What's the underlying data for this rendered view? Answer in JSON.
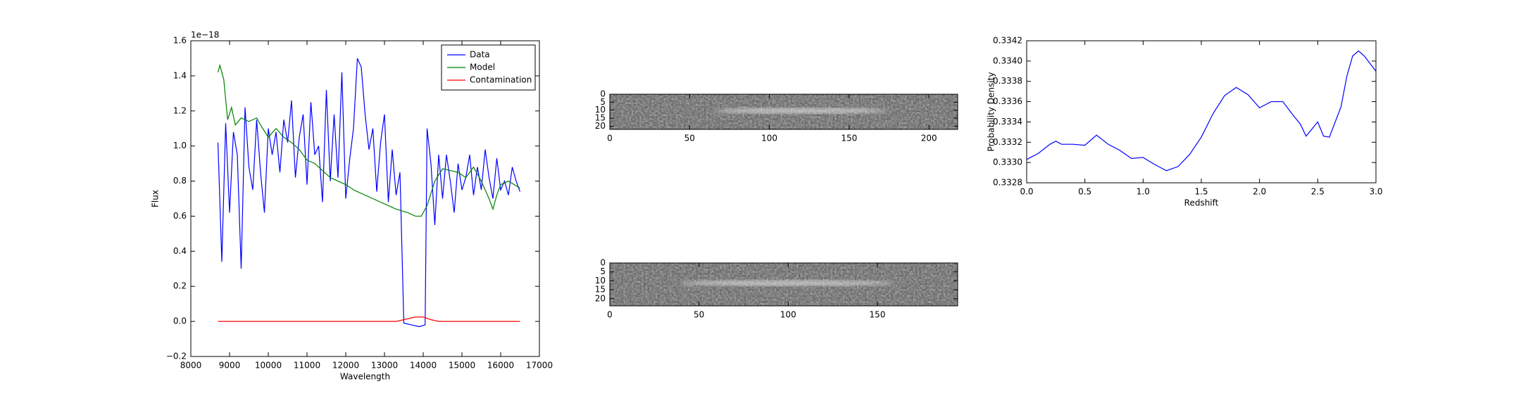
{
  "chart_data": [
    {
      "type": "line",
      "xlabel": "Wavelength",
      "ylabel": "Flux",
      "y_offset_label": "1e−18",
      "xlim": [
        8000,
        17000
      ],
      "xticks": [
        8000,
        9000,
        10000,
        11000,
        12000,
        13000,
        14000,
        15000,
        16000,
        17000
      ],
      "ylim": [
        -0.2,
        1.6
      ],
      "yticks": [
        {
          "value": -0.2,
          "label": "−0.2"
        },
        {
          "value": 0,
          "label": "0.0"
        },
        0.2,
        0.4,
        0.6,
        0.8,
        {
          "value": 1,
          "label": "1.0"
        },
        1.2,
        1.4,
        1.6
      ],
      "legend": "upper right",
      "series": [
        {
          "name": "Data",
          "color": "#0000ff",
          "x": [
            8700,
            8800,
            8900,
            9000,
            9100,
            9200,
            9300,
            9400,
            9500,
            9600,
            9700,
            9800,
            9900,
            10000,
            10100,
            10200,
            10300,
            10400,
            10500,
            10600,
            10700,
            10800,
            10900,
            11000,
            11100,
            11200,
            11300,
            11400,
            11500,
            11600,
            11700,
            11800,
            11900,
            12000,
            12100,
            12200,
            12300,
            12400,
            12500,
            12600,
            12700,
            12800,
            12900,
            13000,
            13100,
            13200,
            13300,
            13400,
            13500,
            13700,
            13900,
            14050,
            14100,
            14200,
            14300,
            14400,
            14500,
            14600,
            14700,
            14800,
            14900,
            15000,
            15100,
            15200,
            15300,
            15400,
            15500,
            15600,
            15700,
            15800,
            15900,
            16000,
            16100,
            16200,
            16300,
            16400,
            16500
          ],
          "values": [
            1.02,
            0.34,
            1.13,
            0.62,
            1.08,
            0.95,
            0.3,
            1.22,
            0.88,
            0.75,
            1.15,
            0.85,
            0.62,
            1.1,
            0.95,
            1.08,
            0.85,
            1.15,
            1.02,
            1.26,
            0.82,
            1.05,
            1.18,
            0.78,
            1.25,
            0.95,
            1.0,
            0.68,
            1.32,
            0.8,
            1.18,
            0.82,
            1.42,
            0.7,
            0.92,
            1.1,
            1.5,
            1.45,
            1.18,
            0.98,
            1.1,
            0.74,
            1.02,
            1.18,
            0.68,
            0.98,
            0.72,
            0.85,
            -0.01,
            -0.02,
            -0.03,
            -0.02,
            1.1,
            0.9,
            0.55,
            0.95,
            0.7,
            0.95,
            0.8,
            0.62,
            0.9,
            0.75,
            0.82,
            0.95,
            0.72,
            0.88,
            0.75,
            0.98,
            0.82,
            0.7,
            0.93,
            0.75,
            0.8,
            0.72,
            0.88,
            0.8,
            0.74
          ]
        },
        {
          "name": "Model",
          "color": "#008000",
          "x": [
            8700,
            8750,
            8850,
            8950,
            9050,
            9150,
            9300,
            9500,
            9700,
            9800,
            10000,
            10200,
            10400,
            10600,
            10800,
            11000,
            11200,
            11400,
            11600,
            11800,
            12000,
            12200,
            12400,
            12700,
            13000,
            13300,
            13600,
            13800,
            13950,
            14100,
            14300,
            14500,
            14700,
            14900,
            15100,
            15300,
            15500,
            15700,
            15800,
            15900,
            16000,
            16200,
            16500
          ],
          "values": [
            1.42,
            1.46,
            1.38,
            1.15,
            1.22,
            1.12,
            1.16,
            1.14,
            1.16,
            1.12,
            1.05,
            1.1,
            1.05,
            1.02,
            0.98,
            0.92,
            0.9,
            0.86,
            0.82,
            0.8,
            0.78,
            0.75,
            0.73,
            0.7,
            0.67,
            0.64,
            0.62,
            0.6,
            0.6,
            0.66,
            0.8,
            0.87,
            0.86,
            0.85,
            0.82,
            0.88,
            0.8,
            0.7,
            0.64,
            0.72,
            0.78,
            0.8,
            0.76
          ]
        },
        {
          "name": "Contamination",
          "color": "#ff0000",
          "x": [
            8700,
            13300,
            13500,
            13800,
            14000,
            14200,
            14400,
            16500
          ],
          "values": [
            0,
            0,
            0.01,
            0.025,
            0.025,
            0.01,
            0,
            0
          ]
        }
      ]
    },
    {
      "type": "image",
      "xlim": [
        0,
        218
      ],
      "xticks": [
        0,
        50,
        100,
        150,
        200
      ],
      "ylim": [
        22,
        0
      ],
      "yticks": [
        0,
        5,
        10,
        15,
        20
      ]
    },
    {
      "type": "image",
      "xlim": [
        0,
        195
      ],
      "xticks": [
        0,
        50,
        100,
        150
      ],
      "ylim": [
        24,
        0
      ],
      "yticks": [
        0,
        5,
        10,
        15,
        20
      ]
    },
    {
      "type": "line",
      "xlabel": "Redshift",
      "ylabel": "Probability Density",
      "xlim": [
        0,
        3
      ],
      "xticks": [
        {
          "value": 0,
          "label": "0.0"
        },
        0.5,
        {
          "value": 1,
          "label": "1.0"
        },
        1.5,
        {
          "value": 2,
          "label": "2.0"
        },
        2.5,
        {
          "value": 3,
          "label": "3.0"
        }
      ],
      "ylim": [
        0.3328,
        0.3342
      ],
      "yticks": [
        0.3328,
        {
          "value": 0.333,
          "label": "0.3330"
        },
        0.3332,
        0.3334,
        0.3336,
        0.3338,
        {
          "value": 0.334,
          "label": "0.3340"
        },
        0.3342
      ],
      "series": [
        {
          "color": "#0000ff",
          "x": [
            0,
            0.1,
            0.2,
            0.25,
            0.3,
            0.4,
            0.5,
            0.6,
            0.7,
            0.8,
            0.9,
            1.0,
            1.1,
            1.2,
            1.3,
            1.4,
            1.5,
            1.6,
            1.7,
            1.8,
            1.9,
            2.0,
            2.1,
            2.2,
            2.3,
            2.35,
            2.4,
            2.5,
            2.55,
            2.6,
            2.7,
            2.75,
            2.8,
            2.85,
            2.9,
            3.0
          ],
          "values": [
            0.33303,
            0.33309,
            0.33318,
            0.33321,
            0.33318,
            0.33318,
            0.33317,
            0.33327,
            0.33318,
            0.33312,
            0.33304,
            0.33305,
            0.33298,
            0.33292,
            0.33296,
            0.33308,
            0.33325,
            0.33348,
            0.33366,
            0.33374,
            0.33367,
            0.33354,
            0.3336,
            0.3336,
            0.33345,
            0.33338,
            0.33326,
            0.3334,
            0.33326,
            0.33325,
            0.33355,
            0.33385,
            0.33405,
            0.3341,
            0.33405,
            0.3339
          ]
        }
      ]
    }
  ]
}
